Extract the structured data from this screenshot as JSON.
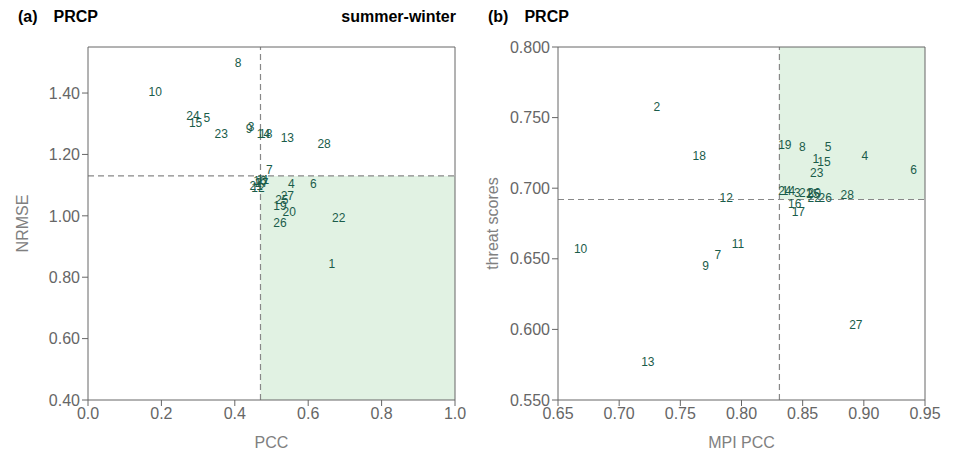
{
  "chart_data": [
    {
      "type": "scatter",
      "panel_label": "(a)",
      "title": "PRCP",
      "subtitle": "summer-winter",
      "xlabel": "PCC",
      "ylabel": "NRMSE",
      "xlim": [
        0.0,
        1.0
      ],
      "ylim": [
        0.4,
        1.55
      ],
      "xticks": [
        {
          "value": 0.0,
          "label": "0.0"
        },
        0.2,
        0.4,
        0.6,
        0.8,
        {
          "value": 1.0,
          "label": "1.0"
        }
      ],
      "yticks": [
        {
          "value": 0.4,
          "label": "0.40"
        },
        {
          "value": 0.6,
          "label": "0.60"
        },
        {
          "value": 0.8,
          "label": "0.80"
        },
        {
          "value": 1.0,
          "label": "1.00"
        },
        {
          "value": 1.2,
          "label": "1.20"
        },
        {
          "value": 1.4,
          "label": "1.40"
        }
      ],
      "grid": false,
      "marker": "none",
      "color": "#1a5c4a",
      "reference_lines": {
        "x": 0.47,
        "y": 1.13,
        "color": "#888888",
        "line_style": "dashed"
      },
      "shade": {
        "x": [
          0.47,
          1.0
        ],
        "y": [
          0.4,
          1.13
        ],
        "color": "#c8e8cc"
      },
      "points": [
        {
          "id": "1",
          "x": 0.655,
          "y": 0.83
        },
        {
          "id": "2",
          "x": 0.455,
          "y": 1.095
        },
        {
          "id": "3",
          "x": 0.435,
          "y": 1.275
        },
        {
          "id": "4",
          "x": 0.545,
          "y": 1.09
        },
        {
          "id": "5",
          "x": 0.315,
          "y": 1.305
        },
        {
          "id": "6",
          "x": 0.605,
          "y": 1.09
        },
        {
          "id": "7",
          "x": 0.485,
          "y": 1.135
        },
        {
          "id": "8",
          "x": 0.4,
          "y": 1.485
        },
        {
          "id": "9",
          "x": 0.43,
          "y": 1.27
        },
        {
          "id": "10",
          "x": 0.165,
          "y": 1.39
        },
        {
          "id": "11",
          "x": 0.46,
          "y": 1.105
        },
        {
          "id": "12",
          "x": 0.445,
          "y": 1.078
        },
        {
          "id": "13",
          "x": 0.525,
          "y": 1.24
        },
        {
          "id": "14",
          "x": 0.46,
          "y": 1.255
        },
        {
          "id": "15",
          "x": 0.275,
          "y": 1.29
        },
        {
          "id": "16",
          "x": 0.45,
          "y": 1.1
        },
        {
          "id": "17",
          "x": 0.455,
          "y": 1.093
        },
        {
          "id": "18",
          "x": 0.466,
          "y": 1.252
        },
        {
          "id": "19",
          "x": 0.505,
          "y": 1.02
        },
        {
          "id": "20",
          "x": 0.53,
          "y": 0.998
        },
        {
          "id": "21",
          "x": 0.44,
          "y": 1.085
        },
        {
          "id": "22",
          "x": 0.665,
          "y": 0.98
        },
        {
          "id": "23",
          "x": 0.345,
          "y": 1.255
        },
        {
          "id": "24",
          "x": 0.268,
          "y": 1.312
        },
        {
          "id": "25",
          "x": 0.51,
          "y": 1.038
        },
        {
          "id": "26",
          "x": 0.505,
          "y": 0.965
        },
        {
          "id": "27",
          "x": 0.525,
          "y": 1.05
        },
        {
          "id": "28",
          "x": 0.625,
          "y": 1.22
        }
      ]
    },
    {
      "type": "scatter",
      "panel_label": "(b)",
      "title": "PRCP",
      "xlabel": "MPI PCC",
      "ylabel": "threat scores",
      "xlim": [
        0.65,
        0.95
      ],
      "ylim": [
        0.55,
        0.8
      ],
      "xticks": [
        0.65,
        {
          "value": 0.7,
          "label": "0.70"
        },
        0.75,
        {
          "value": 0.8,
          "label": "0.80"
        },
        0.85,
        {
          "value": 0.9,
          "label": "0.90"
        },
        0.95
      ],
      "yticks": [
        {
          "value": 0.55,
          "label": "0.550"
        },
        {
          "value": 0.6,
          "label": "0.600"
        },
        {
          "value": 0.65,
          "label": "0.650"
        },
        {
          "value": 0.7,
          "label": "0.700"
        },
        {
          "value": 0.75,
          "label": "0.750"
        },
        {
          "value": 0.8,
          "label": "0.800"
        }
      ],
      "grid": false,
      "marker": "none",
      "color": "#1a5c4a",
      "reference_lines": {
        "x": 0.831,
        "y": 0.692,
        "color": "#888888",
        "line_style": "dashed"
      },
      "shade": {
        "x": [
          0.831,
          0.95
        ],
        "y": [
          0.692,
          0.8
        ],
        "color": "#c8e8cc"
      },
      "points": [
        {
          "id": "1",
          "x": 0.858,
          "y": 0.718
        },
        {
          "id": "2",
          "x": 0.728,
          "y": 0.755
        },
        {
          "id": "3",
          "x": 0.843,
          "y": 0.694
        },
        {
          "id": "4",
          "x": 0.898,
          "y": 0.72
        },
        {
          "id": "5",
          "x": 0.868,
          "y": 0.726
        },
        {
          "id": "6",
          "x": 0.938,
          "y": 0.71
        },
        {
          "id": "7",
          "x": 0.778,
          "y": 0.65
        },
        {
          "id": "8",
          "x": 0.847,
          "y": 0.726
        },
        {
          "id": "9",
          "x": 0.768,
          "y": 0.642
        },
        {
          "id": "10",
          "x": 0.663,
          "y": 0.654
        },
        {
          "id": "11",
          "x": 0.792,
          "y": 0.658
        },
        {
          "id": "12",
          "x": 0.782,
          "y": 0.69
        },
        {
          "id": "13",
          "x": 0.718,
          "y": 0.574
        },
        {
          "id": "14",
          "x": 0.833,
          "y": 0.695
        },
        {
          "id": "15",
          "x": 0.862,
          "y": 0.716
        },
        {
          "id": "16",
          "x": 0.838,
          "y": 0.686
        },
        {
          "id": "17",
          "x": 0.841,
          "y": 0.68
        },
        {
          "id": "18",
          "x": 0.76,
          "y": 0.72
        },
        {
          "id": "19",
          "x": 0.83,
          "y": 0.728
        },
        {
          "id": "20",
          "x": 0.854,
          "y": 0.694
        },
        {
          "id": "21",
          "x": 0.847,
          "y": 0.694
        },
        {
          "id": "22",
          "x": 0.854,
          "y": 0.69
        },
        {
          "id": "23",
          "x": 0.856,
          "y": 0.708
        },
        {
          "id": "24",
          "x": 0.83,
          "y": 0.695
        },
        {
          "id": "25",
          "x": 0.853,
          "y": 0.693
        },
        {
          "id": "26",
          "x": 0.863,
          "y": 0.69
        },
        {
          "id": "27",
          "x": 0.888,
          "y": 0.6
        },
        {
          "id": "28",
          "x": 0.881,
          "y": 0.692
        }
      ]
    }
  ]
}
